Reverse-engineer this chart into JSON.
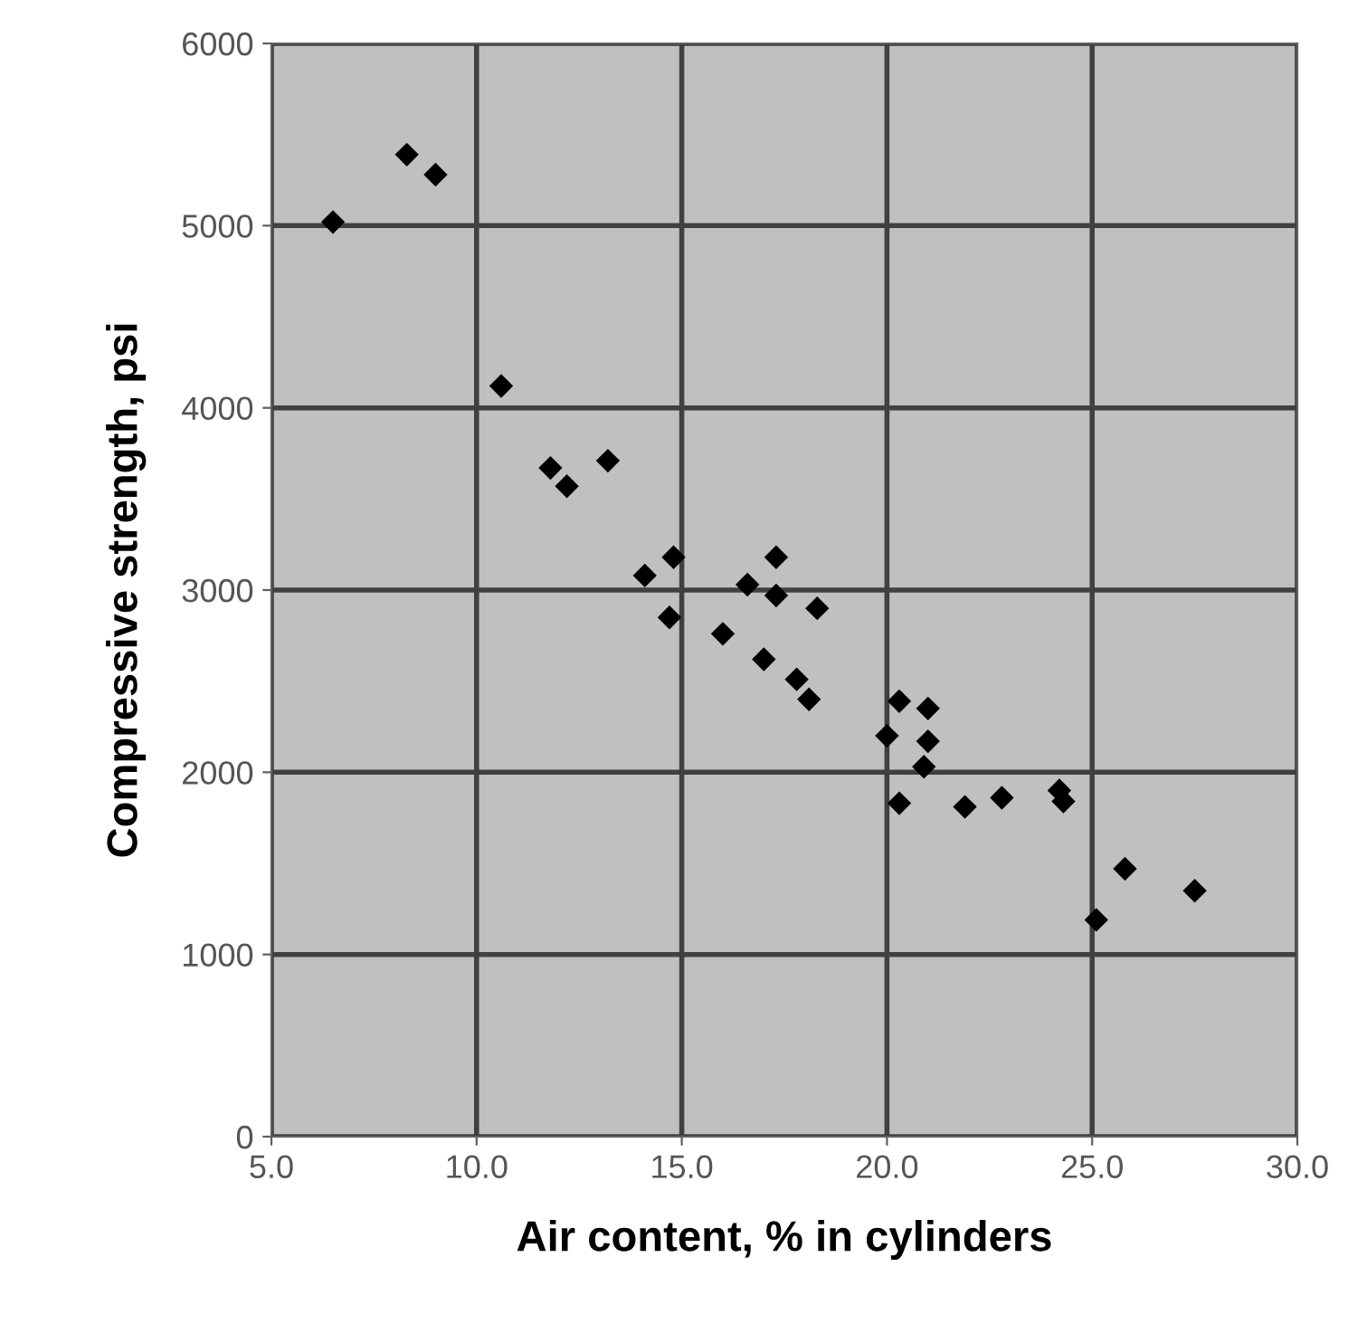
{
  "chart_data": {
    "type": "scatter",
    "xlabel": "Air content, % in cylinders",
    "ylabel": "Compressive strength, psi",
    "x": [
      6.5,
      8.3,
      9.0,
      10.6,
      11.8,
      12.2,
      13.2,
      14.1,
      14.8,
      14.7,
      16.0,
      16.6,
      17.3,
      17.3,
      18.3,
      17.0,
      17.8,
      18.1,
      20.0,
      20.3,
      21.0,
      21.0,
      20.9,
      20.3,
      21.9,
      22.8,
      24.2,
      24.3,
      25.8,
      25.1,
      27.5
    ],
    "values": [
      5020,
      5390,
      5280,
      4120,
      3670,
      3570,
      3710,
      3080,
      3180,
      2850,
      2760,
      3030,
      3180,
      2970,
      2900,
      2620,
      2510,
      2400,
      2200,
      2390,
      2350,
      2170,
      2030,
      1830,
      1810,
      1860,
      1900,
      1840,
      1470,
      1190,
      1350
    ],
    "color": "#000000",
    "marker": "diamond",
    "grid": true,
    "xlim": [
      5,
      30
    ],
    "xticks": [
      {
        "value": 5,
        "label": "5.0"
      },
      {
        "value": 10,
        "label": "10.0"
      },
      {
        "value": 15,
        "label": "15.0"
      },
      {
        "value": 20,
        "label": "20.0"
      },
      {
        "value": 25,
        "label": "25.0"
      },
      {
        "value": 30,
        "label": "30.0"
      }
    ],
    "ylim": [
      0,
      6000
    ],
    "yticks": [
      0,
      1000,
      2000,
      3000,
      4000,
      5000,
      6000
    ]
  }
}
